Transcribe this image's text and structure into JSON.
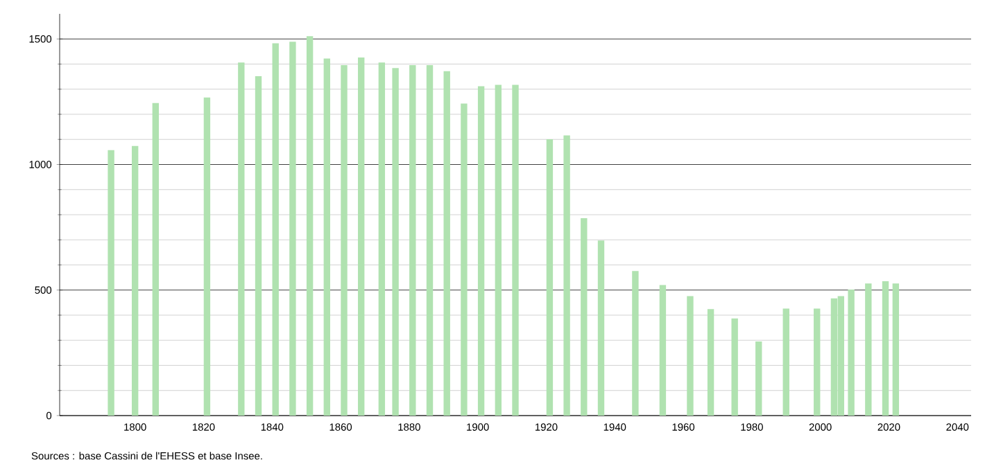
{
  "chart_data": {
    "type": "bar",
    "color": "#b0e2b0",
    "x": [
      1793,
      1800,
      1806,
      1821,
      1831,
      1836,
      1841,
      1846,
      1851,
      1856,
      1861,
      1866,
      1872,
      1876,
      1881,
      1886,
      1891,
      1896,
      1901,
      1906,
      1911,
      1921,
      1926,
      1931,
      1936,
      1946,
      1954,
      1962,
      1968,
      1975,
      1982,
      1990,
      1999,
      2004,
      2006,
      2009,
      2014,
      2019,
      2022
    ],
    "values": [
      1057,
      1074,
      1245,
      1267,
      1406,
      1352,
      1483,
      1489,
      1511,
      1422,
      1396,
      1426,
      1406,
      1384,
      1396,
      1396,
      1372,
      1243,
      1312,
      1317,
      1317,
      1101,
      1116,
      786,
      697,
      576,
      520,
      476,
      424,
      387,
      295,
      426,
      426,
      467,
      476,
      502,
      526,
      535,
      526
    ],
    "xlim": [
      1778,
      2044
    ],
    "ylim": [
      0,
      1600
    ],
    "xticks": [
      1800,
      1820,
      1840,
      1860,
      1880,
      1900,
      1920,
      1940,
      1960,
      1980,
      2000,
      2020,
      2040
    ],
    "yticks": [
      0,
      500,
      1000,
      1500
    ],
    "grid": "y",
    "annotations": [
      "Sources : base Cassini de l'EHESS et base Insee."
    ]
  }
}
